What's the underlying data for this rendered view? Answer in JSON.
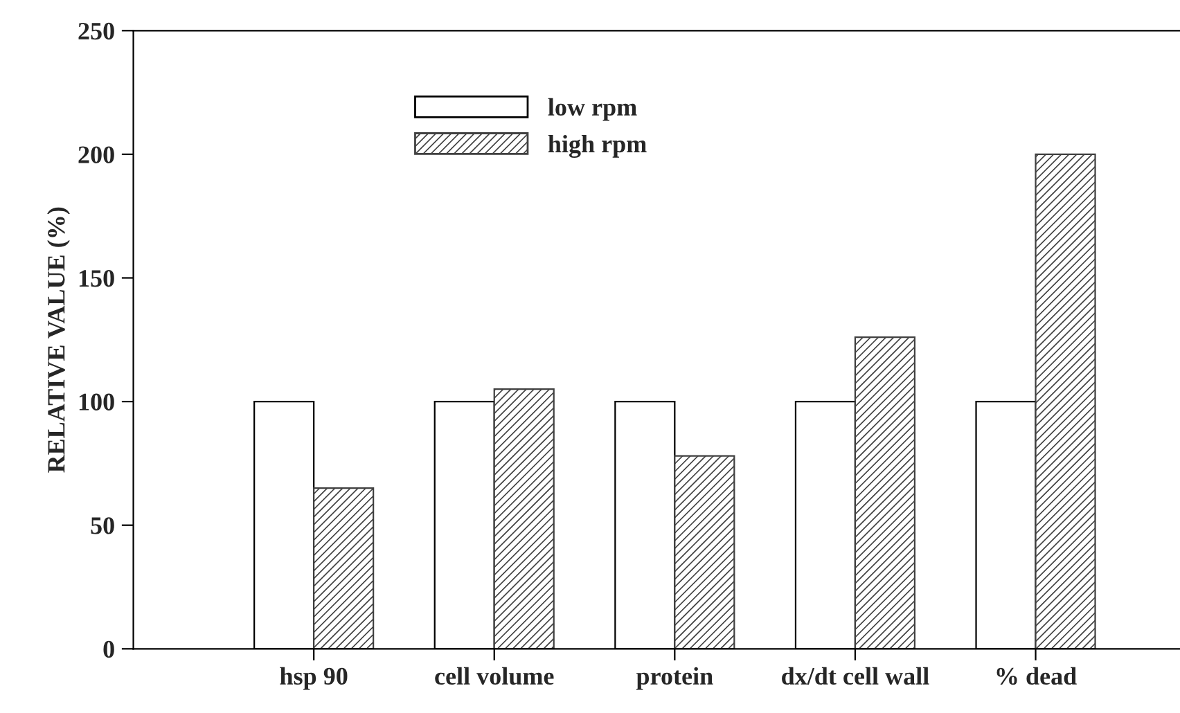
{
  "chart_data": {
    "type": "bar",
    "ylabel": "RELATIVE VALUE (%)",
    "categories": [
      "hsp 90",
      "cell volume",
      "protein",
      "dx/dt cell wall",
      "% dead"
    ],
    "series": [
      {
        "name": "low rpm",
        "color": "#ffffff",
        "values": [
          100,
          100,
          100,
          100,
          100
        ]
      },
      {
        "name": "high rpm",
        "color": "#404040",
        "values": [
          65,
          105,
          78,
          126,
          200
        ]
      }
    ],
    "ylim": [
      0,
      250
    ],
    "yticks": [
      0,
      50,
      100,
      150,
      200,
      250
    ],
    "grid": false,
    "legend": "top"
  }
}
